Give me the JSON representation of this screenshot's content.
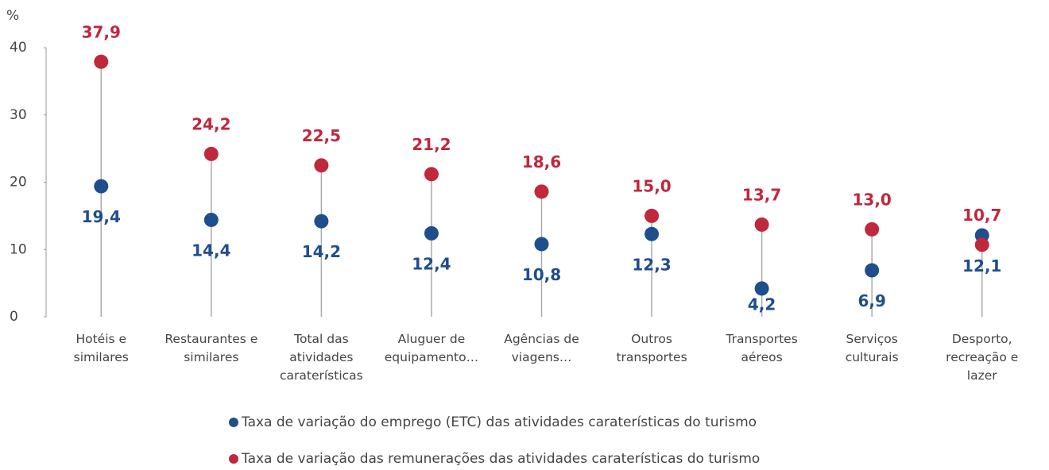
{
  "chart_data": {
    "type": "dot",
    "y_axis_label": "%",
    "categories": [
      "Hotéis e\nsimilares",
      "Restaurantes e\nsimilares",
      "Total das\natividades\ncaraterísticas",
      "Aluguer de\nequipamento…",
      "Agências de\nviagens…",
      "Outros\ntransportes",
      "Transportes\naéreos",
      "Serviços\nculturais",
      "Desporto,\nrecreação e\nlazer"
    ],
    "series": [
      {
        "name": "Taxa de variação do emprego (ETC) das atividades caraterísticas do turismo",
        "color": "#1f4e8c",
        "values": [
          19.4,
          14.4,
          14.2,
          12.4,
          10.8,
          12.3,
          4.2,
          6.9,
          12.1
        ],
        "value_labels": [
          "19,4",
          "14,4",
          "14,2",
          "12,4",
          "10,8",
          "12,3",
          "4,2",
          "6,9",
          "12,1"
        ]
      },
      {
        "name": "Taxa de variação das remunerações das atividades caraterísticas do turismo",
        "color": "#c0283c",
        "values": [
          37.9,
          24.2,
          22.5,
          21.2,
          18.6,
          15.0,
          13.7,
          13.0,
          10.7
        ],
        "value_labels": [
          "37,9",
          "24,2",
          "22,5",
          "21,2",
          "18,6",
          "15,0",
          "13,7",
          "13,0",
          "10,7"
        ]
      }
    ],
    "ylim": [
      0,
      40
    ],
    "yticks": [
      0,
      10,
      20,
      30,
      40
    ],
    "legend": "bottom"
  }
}
